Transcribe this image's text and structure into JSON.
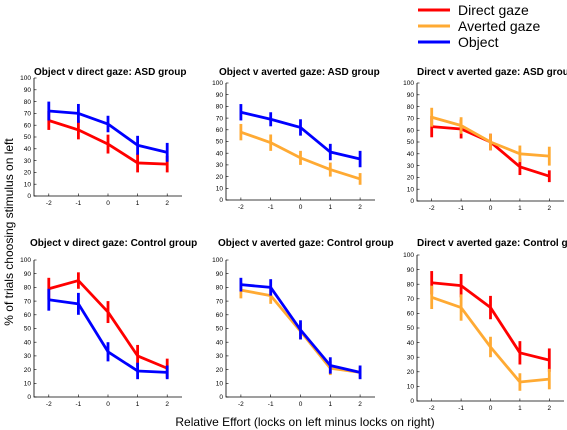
{
  "legend": [
    {
      "name": "Direct gaze",
      "color": "#ff0000"
    },
    {
      "name": "Averted gaze",
      "color": "#ffaa33"
    },
    {
      "name": "Object",
      "color": "#0000ff"
    }
  ],
  "xlabel": "Relative Effort (locks on left minus locks on right)",
  "ylabel": "% of trials choosing stimulus on left",
  "chart_data": [
    {
      "type": "line",
      "title": "Object v direct gaze: ASD group",
      "x": [
        -2,
        -1,
        0,
        1,
        2
      ],
      "ylim": [
        0,
        100
      ],
      "yticks": [
        0,
        10,
        20,
        30,
        40,
        50,
        60,
        70,
        80,
        90,
        100
      ],
      "series": [
        {
          "name": "Direct gaze",
          "color": "#ff0000",
          "values": [
            64,
            56,
            44,
            28,
            27
          ],
          "errors": [
            8,
            8,
            8,
            8,
            7
          ]
        },
        {
          "name": "Object",
          "color": "#0000ff",
          "values": [
            72,
            70,
            61,
            43,
            37
          ],
          "errors": [
            8,
            8,
            7,
            8,
            8
          ]
        }
      ]
    },
    {
      "type": "line",
      "title": "Object v averted gaze: ASD group",
      "x": [
        -2,
        -1,
        0,
        1,
        2
      ],
      "ylim": [
        0,
        100
      ],
      "yticks": [
        0,
        10,
        20,
        30,
        40,
        50,
        60,
        70,
        80,
        90,
        100
      ],
      "series": [
        {
          "name": "Averted gaze",
          "color": "#ffaa33",
          "values": [
            58,
            49,
            36,
            26,
            18
          ],
          "errors": [
            7,
            7,
            6,
            6,
            5
          ]
        },
        {
          "name": "Object",
          "color": "#0000ff",
          "values": [
            75,
            69,
            62,
            41,
            35
          ],
          "errors": [
            7,
            6,
            7,
            7,
            7
          ]
        }
      ]
    },
    {
      "type": "line",
      "title": "Direct v averted gaze: ASD group",
      "x": [
        -2,
        -1,
        0,
        1,
        2
      ],
      "ylim": [
        0,
        100
      ],
      "yticks": [
        0,
        10,
        20,
        30,
        40,
        50,
        60,
        70,
        80,
        90,
        100
      ],
      "series": [
        {
          "name": "Direct gaze",
          "color": "#ff0000",
          "values": [
            63,
            61,
            50,
            29,
            21
          ],
          "errors": [
            9,
            8,
            7,
            7,
            5
          ]
        },
        {
          "name": "Averted gaze",
          "color": "#ffaa33",
          "values": [
            71,
            64,
            50,
            40,
            38
          ],
          "errors": [
            8,
            7,
            7,
            7,
            8
          ]
        }
      ]
    },
    {
      "type": "line",
      "title": "Object v direct gaze: Control group",
      "x": [
        -2,
        -1,
        0,
        1,
        2
      ],
      "ylim": [
        0,
        100
      ],
      "yticks": [
        0,
        10,
        20,
        30,
        40,
        50,
        60,
        70,
        80,
        90,
        100
      ],
      "series": [
        {
          "name": "Direct gaze",
          "color": "#ff0000",
          "values": [
            79,
            85,
            62,
            30,
            21
          ],
          "errors": [
            8,
            6,
            8,
            8,
            7
          ]
        },
        {
          "name": "Object",
          "color": "#0000ff",
          "values": [
            71,
            68,
            33,
            19,
            18
          ],
          "errors": [
            8,
            8,
            7,
            6,
            5
          ]
        }
      ]
    },
    {
      "type": "line",
      "title": "Object v averted gaze: Control group",
      "x": [
        -2,
        -1,
        0,
        1,
        2
      ],
      "ylim": [
        0,
        100
      ],
      "yticks": [
        0,
        10,
        20,
        30,
        40,
        50,
        60,
        70,
        80,
        90,
        100
      ],
      "series": [
        {
          "name": "Averted gaze",
          "color": "#ffaa33",
          "values": [
            78,
            74,
            48,
            21,
            18
          ],
          "errors": [
            6,
            6,
            6,
            5,
            4
          ]
        },
        {
          "name": "Object",
          "color": "#0000ff",
          "values": [
            82,
            80,
            49,
            23,
            18
          ],
          "errors": [
            5,
            6,
            7,
            6,
            5
          ]
        }
      ]
    },
    {
      "type": "line",
      "title": "Direct v averted gaze: Control group",
      "x": [
        -2,
        -1,
        0,
        1,
        2
      ],
      "ylim": [
        0,
        100
      ],
      "yticks": [
        0,
        10,
        20,
        30,
        40,
        50,
        60,
        70,
        80,
        90,
        100
      ],
      "series": [
        {
          "name": "Direct gaze",
          "color": "#ff0000",
          "values": [
            81,
            79,
            64,
            33,
            28
          ],
          "errors": [
            8,
            8,
            8,
            8,
            8
          ]
        },
        {
          "name": "Averted gaze",
          "color": "#ffaa33",
          "values": [
            71,
            64,
            37,
            13,
            15
          ],
          "errors": [
            8,
            9,
            7,
            6,
            7
          ]
        }
      ]
    }
  ]
}
